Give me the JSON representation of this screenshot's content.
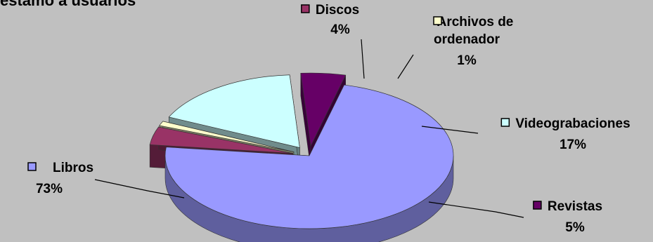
{
  "chart_data": {
    "type": "pie",
    "title": "estamo a usuarios",
    "categories": [
      "Libros",
      "Discos",
      "Archivos de ordenador",
      "Videograbaciones",
      "Revistas"
    ],
    "values": [
      73,
      4,
      1,
      17,
      5
    ],
    "value_labels": [
      "73%",
      "4%",
      "1%",
      "17%",
      "5%"
    ],
    "label_lines": [
      [
        "Libros"
      ],
      [
        "Discos"
      ],
      [
        "Archivos de",
        "ordenador"
      ],
      [
        "Videograbaciones"
      ],
      [
        "Revistas"
      ]
    ],
    "colors": [
      "#9999ff",
      "#993366",
      "#ffffcc",
      "#ccffff",
      "#660066"
    ],
    "exploded": [
      false,
      true,
      true,
      true,
      true
    ],
    "style": "3d-exploded"
  }
}
